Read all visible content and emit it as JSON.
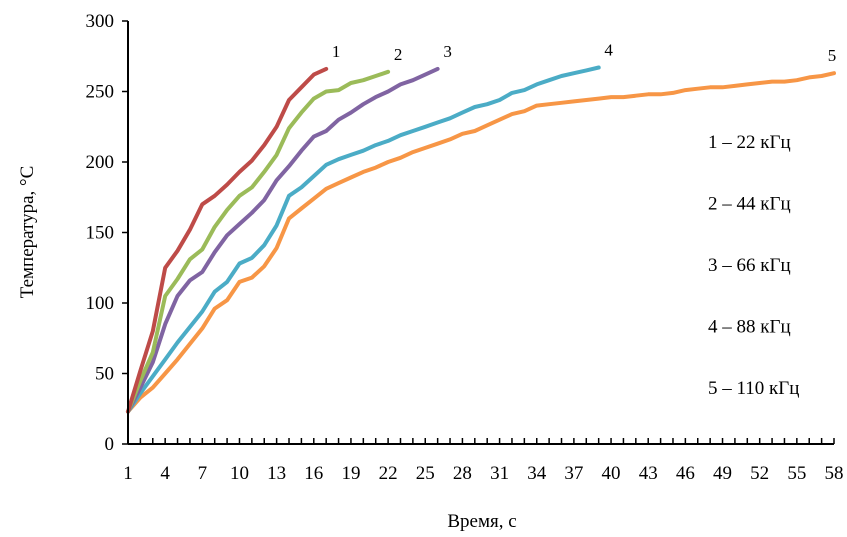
{
  "chart_data": {
    "type": "line",
    "title": "",
    "xlabel": "Время, с",
    "ylabel": "Температура,  °С",
    "xlim": [
      1,
      58
    ],
    "ylim": [
      0,
      300
    ],
    "y_ticks": [
      "0",
      "50",
      "100",
      "150",
      "200",
      "250",
      "300"
    ],
    "x_ticks": [
      "1",
      "4",
      "7",
      "10",
      "13",
      "16",
      "19",
      "22",
      "25",
      "28",
      "31",
      "34",
      "37",
      "40",
      "43",
      "46",
      "49",
      "52",
      "55",
      "58"
    ],
    "grid": false,
    "legend_text": [
      "1 – 22 кГц",
      "2 – 44 кГц",
      "3 – 66 кГц",
      "4 – 88 кГц",
      "5 – 110 кГц"
    ],
    "series": [
      {
        "name": "1",
        "color": "#be4b48",
        "x": [
          1,
          2,
          3,
          4,
          5,
          6,
          7,
          8,
          9,
          10,
          11,
          12,
          13,
          14,
          15,
          16,
          17
        ],
        "y": [
          23,
          52,
          80,
          125,
          137,
          152,
          170,
          176,
          184,
          193,
          201,
          212,
          225,
          244,
          253,
          262,
          266
        ]
      },
      {
        "name": "2",
        "color": "#9bbb59",
        "x": [
          1,
          2,
          3,
          4,
          5,
          6,
          7,
          8,
          9,
          10,
          11,
          12,
          13,
          14,
          15,
          16,
          17,
          18,
          19,
          20,
          21,
          22
        ],
        "y": [
          23,
          45,
          65,
          105,
          117,
          131,
          138,
          154,
          166,
          176,
          182,
          193,
          205,
          224,
          235,
          245,
          250,
          251,
          256,
          258,
          261,
          264
        ]
      },
      {
        "name": "3",
        "color": "#8064a2",
        "x": [
          1,
          2,
          3,
          4,
          5,
          6,
          7,
          8,
          9,
          10,
          11,
          12,
          13,
          14,
          15,
          16,
          17,
          18,
          19,
          20,
          21,
          22,
          23,
          24,
          25,
          26
        ],
        "y": [
          23,
          40,
          58,
          85,
          105,
          116,
          122,
          136,
          148,
          156,
          164,
          173,
          187,
          197,
          208,
          218,
          222,
          230,
          235,
          241,
          246,
          250,
          255,
          258,
          262,
          266
        ]
      },
      {
        "name": "4",
        "color": "#4bacc6",
        "x": [
          1,
          2,
          3,
          4,
          5,
          6,
          7,
          8,
          9,
          10,
          11,
          12,
          13,
          14,
          15,
          16,
          17,
          18,
          19,
          20,
          21,
          22,
          23,
          24,
          25,
          26,
          27,
          28,
          29,
          30,
          31,
          32,
          33,
          34,
          35,
          36,
          37,
          38,
          39
        ],
        "y": [
          23,
          36,
          48,
          60,
          72,
          83,
          94,
          108,
          115,
          128,
          132,
          141,
          155,
          176,
          182,
          190,
          198,
          202,
          205,
          208,
          212,
          215,
          219,
          222,
          225,
          228,
          231,
          235,
          239,
          241,
          244,
          249,
          251,
          255,
          258,
          261,
          263,
          265,
          267
        ]
      },
      {
        "name": "5",
        "color": "#f79646",
        "x": [
          1,
          2,
          3,
          4,
          5,
          6,
          7,
          8,
          9,
          10,
          11,
          12,
          13,
          14,
          15,
          16,
          17,
          18,
          19,
          20,
          21,
          22,
          23,
          24,
          25,
          26,
          27,
          28,
          29,
          30,
          31,
          32,
          33,
          34,
          35,
          36,
          37,
          38,
          39,
          40,
          41,
          42,
          43,
          44,
          45,
          46,
          47,
          48,
          49,
          50,
          51,
          52,
          53,
          54,
          55,
          56,
          57,
          58
        ],
        "y": [
          23,
          33,
          40,
          50,
          60,
          71,
          82,
          96,
          102,
          115,
          118,
          126,
          139,
          160,
          167,
          174,
          181,
          185,
          189,
          193,
          196,
          200,
          203,
          207,
          210,
          213,
          216,
          220,
          222,
          226,
          230,
          234,
          236,
          240,
          241,
          242,
          243,
          244,
          245,
          246,
          246,
          247,
          248,
          248,
          249,
          251,
          252,
          253,
          253,
          254,
          255,
          256,
          257,
          257,
          258,
          260,
          261,
          263
        ]
      }
    ]
  }
}
